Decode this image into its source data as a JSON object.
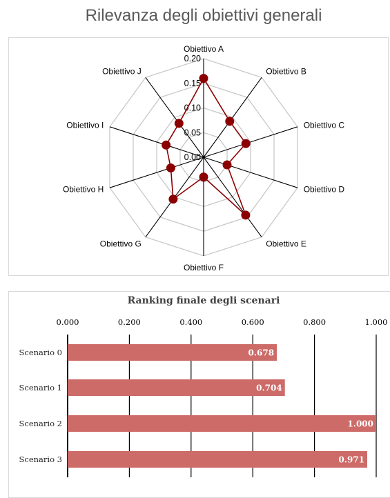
{
  "chart_data": [
    {
      "type": "radar",
      "title": "Rilevanza degli obiettivi generali",
      "categories": [
        "Obiettivo A",
        "Obiettivo B",
        "Obiettivo C",
        "Obiettivo D",
        "Obiettivo E",
        "Obiettivo F",
        "Obiettivo G",
        "Obiettivo H",
        "Obiettivo I",
        "Obiettivo J"
      ],
      "values": [
        0.16,
        0.09,
        0.09,
        0.05,
        0.145,
        0.04,
        0.105,
        0.07,
        0.08,
        0.085
      ],
      "range": [
        0,
        0.2
      ],
      "ticks": [
        "0.00",
        "0.05",
        "0.10",
        "0.15",
        "0.20"
      ],
      "series_color": "#8b0000",
      "grid_color": "#c8c8c8",
      "axis_color": "#000000"
    },
    {
      "type": "bar",
      "orientation": "horizontal",
      "title": "Ranking finale degli scenari",
      "categories": [
        "Scenario 0",
        "Scenario 1",
        "Scenario 2",
        "Scenario 3"
      ],
      "values": [
        0.678,
        0.704,
        1.0,
        0.971
      ],
      "value_labels": [
        "0.678",
        "0.704",
        "1.000",
        "0.971"
      ],
      "xlim": [
        0,
        1
      ],
      "ticks": [
        "0.000",
        "0.200",
        "0.400",
        "0.600",
        "0.800",
        "1.000"
      ],
      "tick_position": "top",
      "grid": true,
      "bar_color": "#cd6b68"
    }
  ]
}
